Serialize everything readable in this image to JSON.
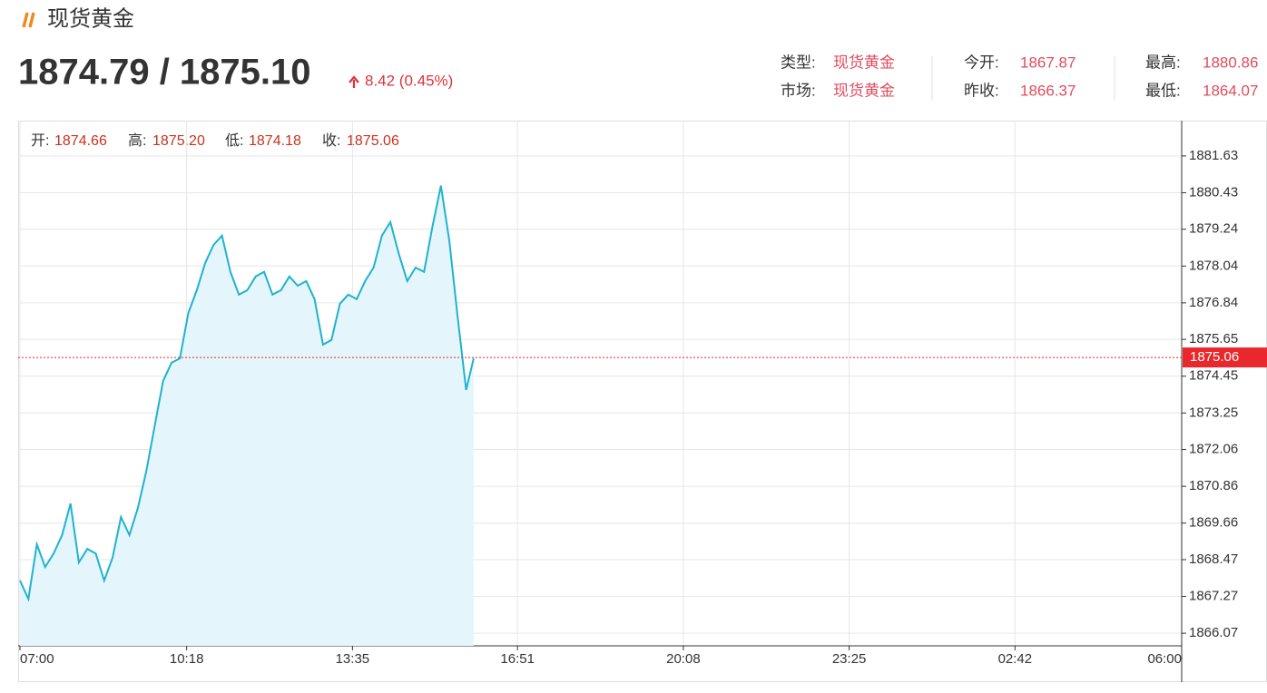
{
  "header": {
    "title": "现货黄金",
    "price": "1874.79 / 1875.10",
    "change": "8.42 (0.45%)",
    "info": [
      [
        {
          "label": "类型:",
          "value": "现货黄金"
        },
        {
          "label": "今开:",
          "value": "1867.87"
        },
        {
          "label": "最高:",
          "value": "1880.86"
        }
      ],
      [
        {
          "label": "市场:",
          "value": "现货黄金"
        },
        {
          "label": "昨收:",
          "value": "1866.37"
        },
        {
          "label": "最低:",
          "value": "1864.07"
        }
      ]
    ]
  },
  "chart_data": {
    "type": "area",
    "ohlc": [
      {
        "label": "开:",
        "value": "1874.66"
      },
      {
        "label": "高:",
        "value": "1875.20"
      },
      {
        "label": "低:",
        "value": "1874.18"
      },
      {
        "label": "收:",
        "value": "1875.06"
      }
    ],
    "x": [
      "07:00",
      "07:10",
      "07:20",
      "07:30",
      "07:40",
      "07:50",
      "08:00",
      "08:10",
      "08:20",
      "08:30",
      "08:40",
      "08:50",
      "09:00",
      "09:10",
      "09:20",
      "09:30",
      "09:40",
      "09:50",
      "10:00",
      "10:10",
      "10:20",
      "10:30",
      "10:40",
      "10:50",
      "11:00",
      "11:10",
      "11:20",
      "11:30",
      "11:40",
      "11:50",
      "12:00",
      "12:10",
      "12:20",
      "12:30",
      "12:40",
      "12:50",
      "13:00",
      "13:10",
      "13:20",
      "13:30",
      "13:40",
      "13:50",
      "14:00",
      "14:10",
      "14:20",
      "14:30",
      "14:40",
      "14:50",
      "15:00",
      "15:10",
      "15:20",
      "15:30",
      "15:40",
      "15:50",
      "15:59"
    ],
    "values": [
      1867.79,
      1867.19,
      1868.97,
      1868.23,
      1868.67,
      1869.27,
      1870.3,
      1868.38,
      1868.82,
      1868.67,
      1867.79,
      1868.53,
      1869.86,
      1869.27,
      1870.15,
      1871.34,
      1872.82,
      1874.29,
      1874.89,
      1875.03,
      1876.51,
      1877.25,
      1878.14,
      1878.73,
      1879.03,
      1877.85,
      1877.11,
      1877.25,
      1877.7,
      1877.85,
      1877.11,
      1877.25,
      1877.7,
      1877.4,
      1877.55,
      1876.96,
      1875.48,
      1875.63,
      1876.81,
      1877.11,
      1876.96,
      1877.55,
      1877.99,
      1879.03,
      1879.47,
      1878.44,
      1877.55,
      1877.99,
      1877.85,
      1879.33,
      1880.66,
      1878.88,
      1876.37,
      1874.0,
      1875.03
    ],
    "color": "#1fb3cf",
    "fill": "#e4f5fb",
    "current_value": 1875.06,
    "current_color": "#e8282c",
    "xlim": [
      "07:00",
      "06:00"
    ],
    "xticks": [
      "07:00",
      "10:18",
      "13:35",
      "16:51",
      "20:08",
      "23:25",
      "02:42",
      "06:00"
    ],
    "ylim": [
      1865.66,
      1882.78
    ],
    "yticks": [
      1881.63,
      1880.43,
      1879.24,
      1878.04,
      1876.84,
      1875.65,
      1874.45,
      1873.25,
      1872.06,
      1870.86,
      1869.66,
      1868.47,
      1867.27,
      1866.07
    ],
    "grid": true
  }
}
